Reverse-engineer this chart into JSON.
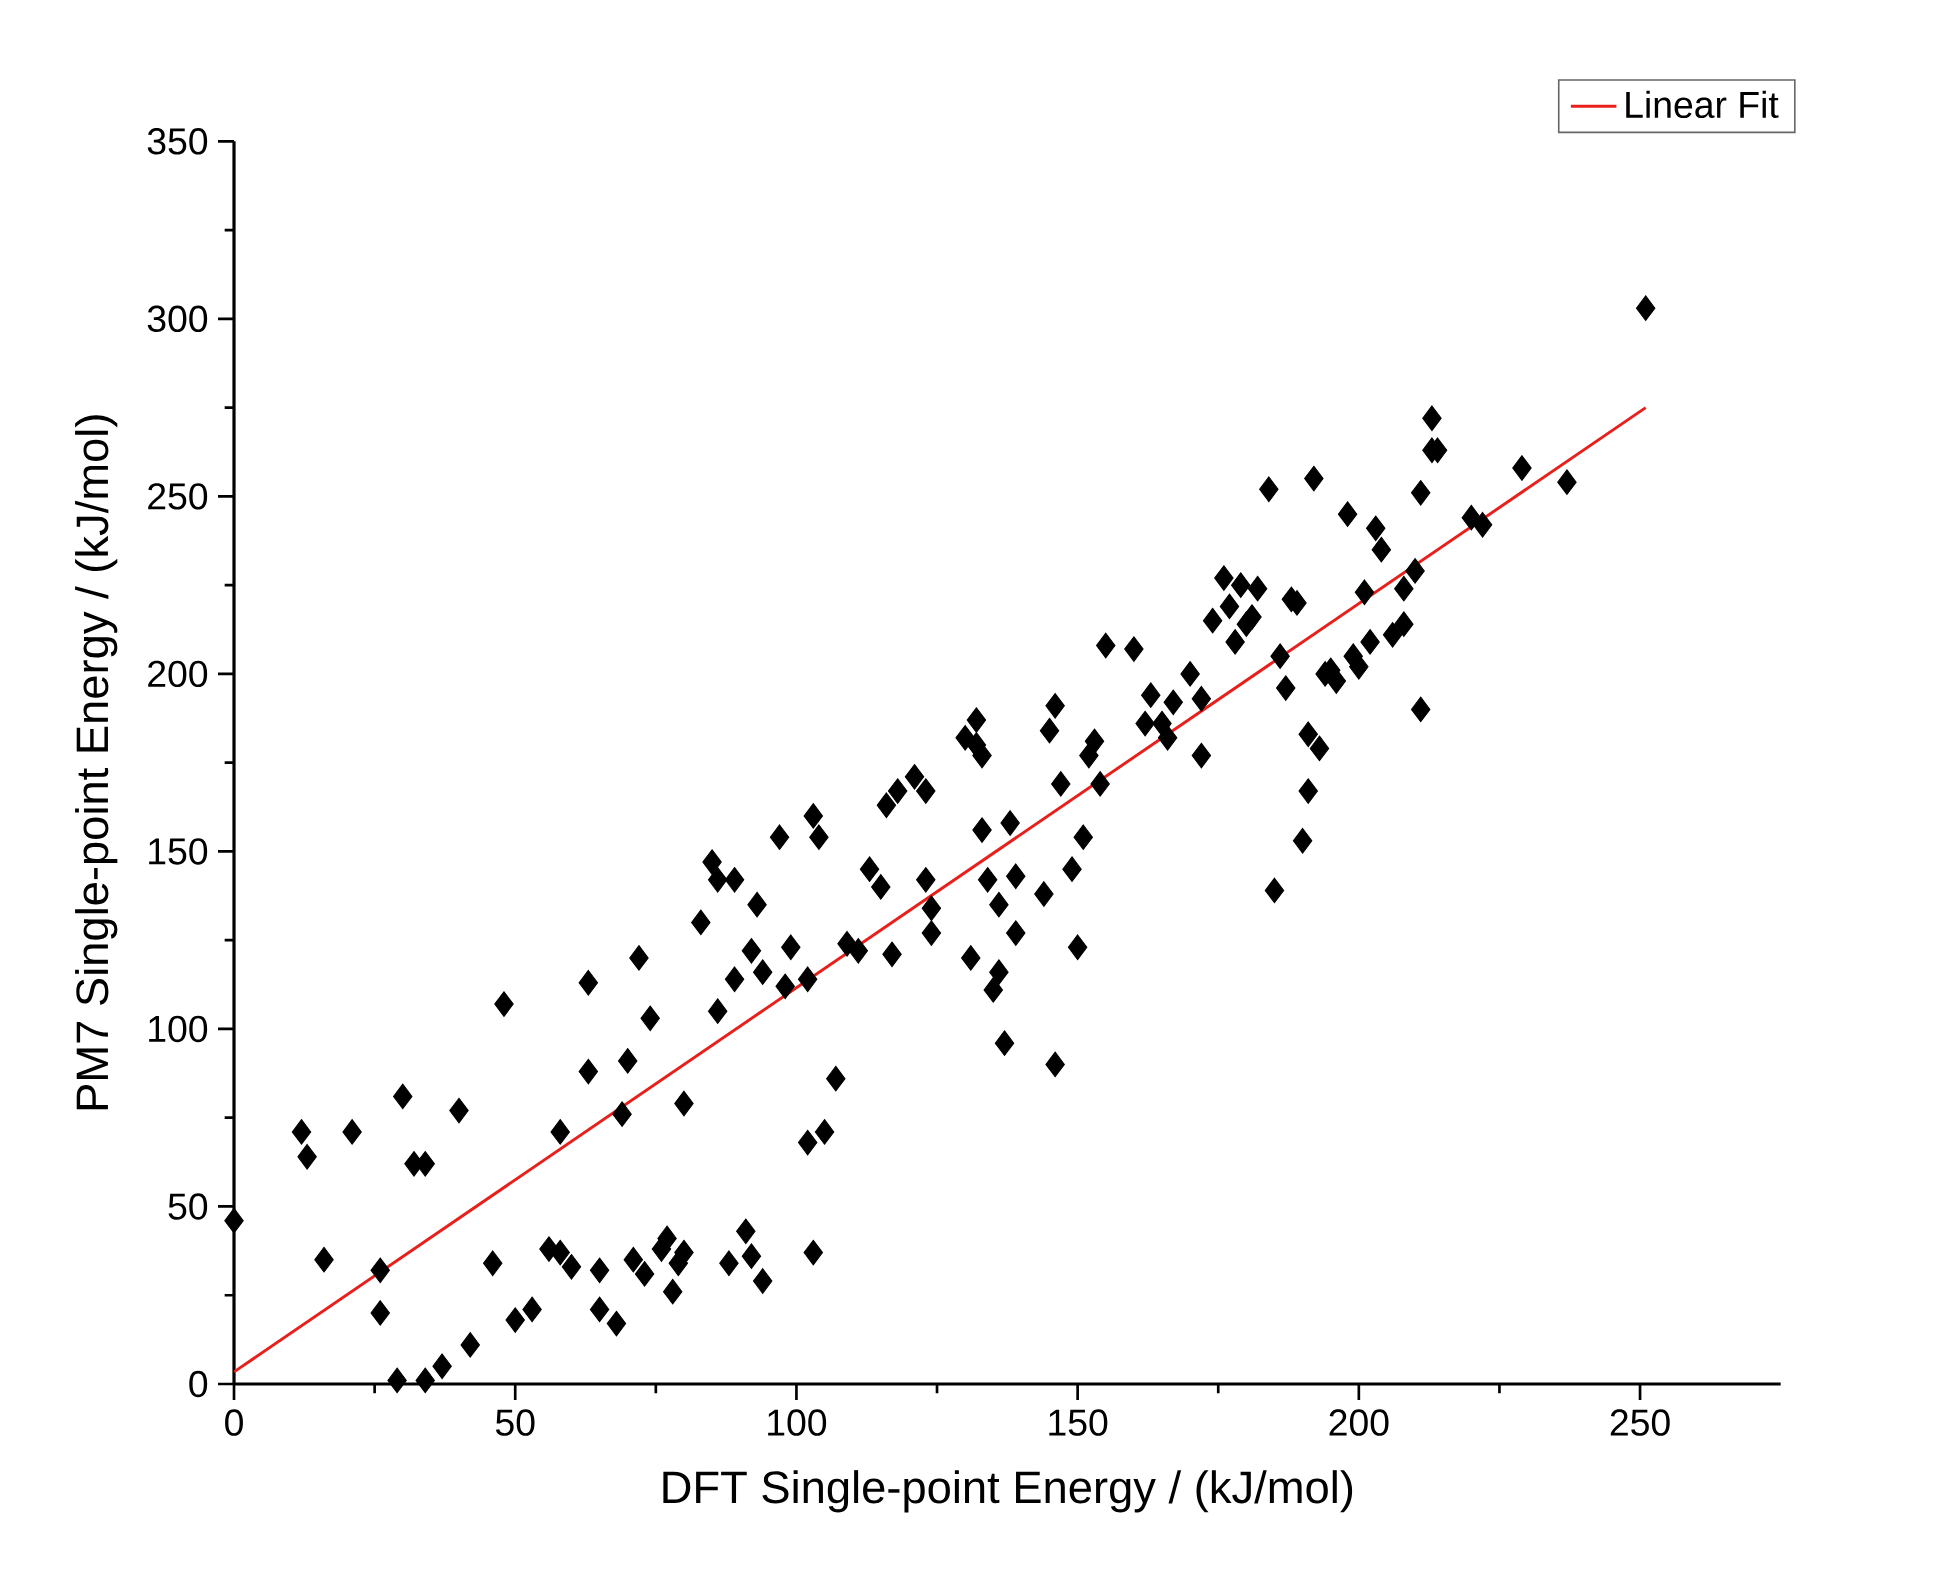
{
  "chart_data": {
    "type": "scatter",
    "xlabel": "DFT Single-point  Energy / (kJ/mol)",
    "ylabel": "PM7 Single-point Energy / (kJ/mol)",
    "xlim": [
      0,
      275
    ],
    "ylim": [
      0,
      350
    ],
    "xticks": [
      0,
      50,
      100,
      150,
      200,
      250
    ],
    "yticks": [
      0,
      50,
      100,
      150,
      200,
      250,
      300,
      350
    ],
    "grid": false,
    "legend": "top right",
    "series": [
      {
        "marker": "diamond",
        "color": "#000000",
        "x": [
          0,
          12,
          13,
          16,
          21,
          26,
          26,
          29,
          30,
          32,
          34,
          34,
          37,
          40,
          42,
          46,
          48,
          50,
          53,
          56,
          58,
          58,
          60,
          63,
          63,
          65,
          65,
          68,
          69,
          70,
          71,
          72,
          73,
          74,
          76,
          77,
          78,
          79,
          80,
          80,
          83,
          85,
          86,
          89,
          86,
          88,
          89,
          91,
          92,
          93,
          92,
          94,
          94,
          97,
          98,
          99,
          102,
          103,
          102,
          103,
          104,
          105,
          107,
          109,
          111,
          113,
          115,
          116,
          117,
          118,
          121,
          123,
          123,
          124,
          124,
          130,
          131,
          132,
          132,
          133,
          133,
          134,
          135,
          136,
          136,
          137,
          138,
          139,
          139,
          144,
          145,
          146,
          146,
          147,
          149,
          150,
          151,
          152,
          153,
          154,
          155,
          160,
          162,
          163,
          165,
          166,
          167,
          170,
          172,
          172,
          174,
          176,
          177,
          178,
          179,
          180,
          181,
          182,
          184,
          185,
          186,
          187,
          188,
          189,
          190,
          191,
          191,
          192,
          193,
          194,
          195,
          196,
          198,
          199,
          200,
          201,
          202,
          203,
          204,
          206,
          208,
          208,
          210,
          211,
          211,
          213,
          213,
          214,
          220,
          222,
          229,
          237,
          251
        ],
        "values": [
          46,
          71,
          64,
          35,
          71,
          32,
          20,
          1,
          81,
          62,
          62,
          1,
          5,
          77,
          11,
          34,
          107,
          18,
          21,
          38,
          37,
          71,
          33,
          88,
          113,
          32,
          21,
          17,
          76,
          91,
          35,
          120,
          31,
          103,
          38,
          41,
          26,
          34,
          79,
          37,
          130,
          147,
          142,
          142,
          105,
          34,
          114,
          43,
          36,
          135,
          122,
          29,
          116,
          154,
          112,
          123,
          114,
          160,
          68,
          37,
          154,
          71,
          86,
          124,
          122,
          145,
          140,
          163,
          121,
          167,
          171,
          167,
          142,
          134,
          127,
          182,
          120,
          180,
          187,
          177,
          156,
          142,
          111,
          135,
          116,
          96,
          158,
          143,
          127,
          138,
          184,
          191,
          90,
          169,
          145,
          123,
          154,
          177,
          181,
          169,
          208,
          207,
          186,
          194,
          186,
          182,
          192,
          200,
          177,
          193,
          215,
          227,
          219,
          209,
          225,
          214,
          216,
          224,
          252,
          139,
          205,
          196,
          221,
          220,
          153,
          167,
          183,
          255,
          179,
          200,
          201,
          198,
          245,
          205,
          202,
          223,
          209,
          241,
          235,
          211,
          214,
          224,
          229,
          190,
          251,
          263,
          272,
          263,
          244,
          242,
          258,
          254,
          303
        ]
      },
      {
        "type": "line",
        "marker": "none",
        "name": "Linear Fit",
        "color": "#e8201c",
        "x": [
          0,
          251
        ],
        "values": [
          3.4,
          275
        ]
      }
    ]
  }
}
